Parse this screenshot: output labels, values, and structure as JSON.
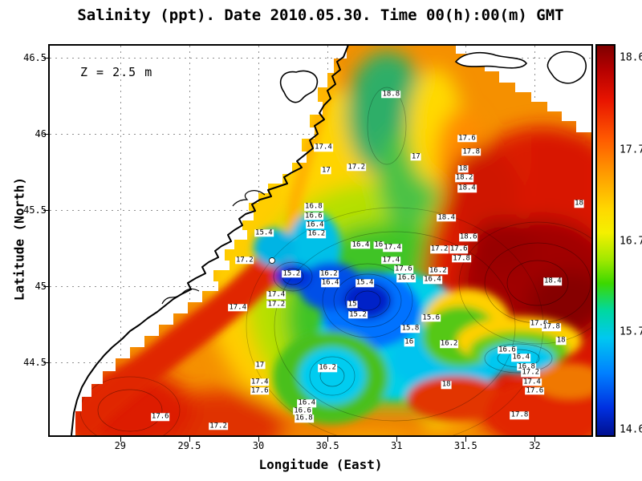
{
  "title": "Salinity (ppt). Date 2010.05.30. Time 00(h):00(m) GMT",
  "annotation": "Z = 2.5 m",
  "colorbar": {
    "gradient": [
      "#7f0000 0%",
      "#b40000 6%",
      "#e81400 14%",
      "#ff5a00 24%",
      "#ff9c00 33%",
      "#ffd800 42%",
      "#f4f000 48%",
      "#a0e800 55%",
      "#3cd800 61%",
      "#00d8a0 68%",
      "#00c8f0 75%",
      "#0080ff 84%",
      "#0030e0 93%",
      "#001090 100%"
    ],
    "ticks": [
      {
        "label": "18.6",
        "f": 0.03
      },
      {
        "label": "17.7",
        "f": 0.267
      },
      {
        "label": "16.7",
        "f": 0.502
      },
      {
        "label": "15.7",
        "f": 0.735
      },
      {
        "label": "14.6",
        "f": 0.985
      }
    ]
  },
  "chart_data": {
    "type": "heatmap",
    "title": "Salinity (ppt). Date 2010.05.30. Time 00(h):00(m) GMT",
    "variable": "Salinity",
    "units": "ppt",
    "date": "2010.05.30",
    "time": "00(h):00(m) GMT",
    "depth_annotation": "Z = 2.5 m",
    "xlabel": "Longitude (East)",
    "ylabel": "Latitude (North)",
    "xlim": [
      28.49,
      32.41
    ],
    "ylim": [
      44.02,
      46.58
    ],
    "x_ticks": [
      29,
      29.5,
      30,
      30.5,
      31,
      31.5,
      32
    ],
    "y_ticks": [
      46.5,
      46,
      45.5,
      45,
      44.5
    ],
    "value_range": [
      14.6,
      18.6
    ],
    "colorbar_ticks": [
      18.6,
      17.7,
      16.7,
      15.7,
      14.6
    ],
    "grid": "dashed",
    "legend_position": "right-colorbar",
    "contour_labels": [
      {
        "v": "18.8",
        "lon": 30.96,
        "lat": 46.26
      },
      {
        "v": "17.6",
        "lon": 31.51,
        "lat": 45.97
      },
      {
        "v": "17.4",
        "lon": 30.47,
        "lat": 45.91
      },
      {
        "v": "17",
        "lon": 31.14,
        "lat": 45.85
      },
      {
        "v": "17.8",
        "lon": 31.54,
        "lat": 45.88
      },
      {
        "v": "17",
        "lon": 30.49,
        "lat": 45.76
      },
      {
        "v": "17.2",
        "lon": 30.71,
        "lat": 45.78
      },
      {
        "v": "18",
        "lon": 31.48,
        "lat": 45.77
      },
      {
        "v": "18.2",
        "lon": 31.49,
        "lat": 45.71
      },
      {
        "v": "18.4",
        "lon": 31.51,
        "lat": 45.64
      },
      {
        "v": "18",
        "lon": 32.32,
        "lat": 45.54
      },
      {
        "v": "16.8",
        "lon": 30.4,
        "lat": 45.52
      },
      {
        "v": "16.6",
        "lon": 30.4,
        "lat": 45.46
      },
      {
        "v": "16.4",
        "lon": 30.41,
        "lat": 45.4
      },
      {
        "v": "16.2",
        "lon": 30.42,
        "lat": 45.34
      },
      {
        "v": "15.4",
        "lon": 30.04,
        "lat": 45.35
      },
      {
        "v": "18.4",
        "lon": 31.36,
        "lat": 45.45
      },
      {
        "v": "18.6",
        "lon": 31.52,
        "lat": 45.32
      },
      {
        "v": "16.4",
        "lon": 30.74,
        "lat": 45.27
      },
      {
        "v": "16",
        "lon": 30.87,
        "lat": 45.27
      },
      {
        "v": "17.4",
        "lon": 30.97,
        "lat": 45.25
      },
      {
        "v": "17.2",
        "lon": 31.31,
        "lat": 45.24
      },
      {
        "v": "17.6",
        "lon": 31.45,
        "lat": 45.24
      },
      {
        "v": "17.4",
        "lon": 30.96,
        "lat": 45.17
      },
      {
        "v": "17.6",
        "lon": 31.05,
        "lat": 45.11
      },
      {
        "v": "16.6",
        "lon": 31.07,
        "lat": 45.05
      },
      {
        "v": "16.4",
        "lon": 31.26,
        "lat": 45.04
      },
      {
        "v": "16.2",
        "lon": 31.3,
        "lat": 45.1
      },
      {
        "v": "17.8",
        "lon": 31.47,
        "lat": 45.18
      },
      {
        "v": "15.2",
        "lon": 30.24,
        "lat": 45.08
      },
      {
        "v": "16.2",
        "lon": 30.51,
        "lat": 45.08
      },
      {
        "v": "16.4",
        "lon": 30.52,
        "lat": 45.02
      },
      {
        "v": "15.4",
        "lon": 30.77,
        "lat": 45.02
      },
      {
        "v": "17.2",
        "lon": 29.9,
        "lat": 45.17
      },
      {
        "v": "17.4",
        "lon": 30.13,
        "lat": 44.94
      },
      {
        "v": "17.2",
        "lon": 30.13,
        "lat": 44.88
      },
      {
        "v": "17.4",
        "lon": 29.85,
        "lat": 44.86
      },
      {
        "v": "15",
        "lon": 30.68,
        "lat": 44.88
      },
      {
        "v": "15.2",
        "lon": 30.72,
        "lat": 44.81
      },
      {
        "v": "15.6",
        "lon": 31.25,
        "lat": 44.79
      },
      {
        "v": "15.8",
        "lon": 31.1,
        "lat": 44.72
      },
      {
        "v": "16",
        "lon": 31.09,
        "lat": 44.63
      },
      {
        "v": "16.2",
        "lon": 31.38,
        "lat": 44.62
      },
      {
        "v": "18.4",
        "lon": 32.13,
        "lat": 45.03
      },
      {
        "v": "17.6",
        "lon": 32.03,
        "lat": 44.75
      },
      {
        "v": "17.8",
        "lon": 32.12,
        "lat": 44.73
      },
      {
        "v": "18",
        "lon": 32.19,
        "lat": 44.64
      },
      {
        "v": "16.6",
        "lon": 31.8,
        "lat": 44.58
      },
      {
        "v": "16.4",
        "lon": 31.9,
        "lat": 44.53
      },
      {
        "v": "17",
        "lon": 30.01,
        "lat": 44.48
      },
      {
        "v": "16.2",
        "lon": 30.5,
        "lat": 44.46
      },
      {
        "v": "18",
        "lon": 31.36,
        "lat": 44.35
      },
      {
        "v": "16.8",
        "lon": 31.94,
        "lat": 44.47
      },
      {
        "v": "17.2",
        "lon": 31.97,
        "lat": 44.43
      },
      {
        "v": "17.4",
        "lon": 31.98,
        "lat": 44.37
      },
      {
        "v": "17.6",
        "lon": 32.0,
        "lat": 44.31
      },
      {
        "v": "17.4",
        "lon": 30.01,
        "lat": 44.37
      },
      {
        "v": "17.6",
        "lon": 30.01,
        "lat": 44.31
      },
      {
        "v": "16.4",
        "lon": 30.35,
        "lat": 44.23
      },
      {
        "v": "16.6",
        "lon": 30.32,
        "lat": 44.18
      },
      {
        "v": "16.8",
        "lon": 30.33,
        "lat": 44.13
      },
      {
        "v": "17.6",
        "lon": 29.29,
        "lat": 44.14
      },
      {
        "v": "17.2",
        "lon": 29.71,
        "lat": 44.08
      },
      {
        "v": "17.8",
        "lon": 31.89,
        "lat": 44.15
      }
    ]
  }
}
